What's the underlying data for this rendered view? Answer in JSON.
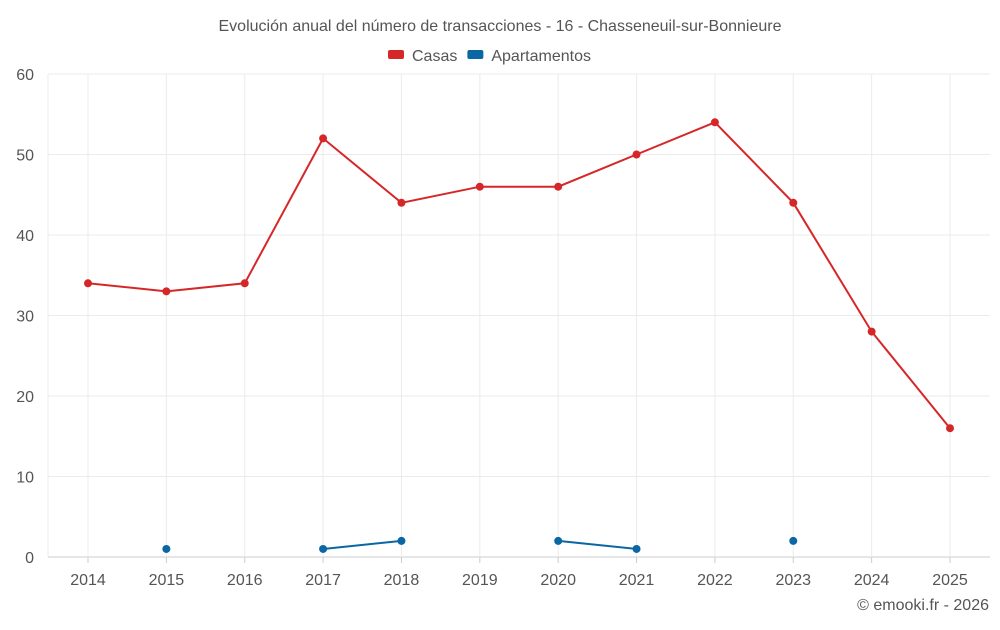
{
  "chart_data": {
    "type": "line",
    "title": "Evolución anual del número de transacciones - 16 - Chasseneuil-sur-Bonnieure",
    "categories": [
      "2014",
      "2015",
      "2016",
      "2017",
      "2018",
      "2019",
      "2020",
      "2021",
      "2022",
      "2023",
      "2024",
      "2025"
    ],
    "series": [
      {
        "name": "Casas",
        "color": "#d62728",
        "values": [
          34,
          33,
          34,
          52,
          44,
          46,
          46,
          50,
          54,
          44,
          28,
          16
        ]
      },
      {
        "name": "Apartamentos",
        "color": "#0a67a3",
        "values": [
          null,
          1,
          null,
          1,
          2,
          null,
          2,
          1,
          null,
          2,
          null,
          null
        ]
      }
    ],
    "ylim": [
      0,
      60
    ],
    "yticks": [
      0,
      10,
      20,
      30,
      40,
      50,
      60
    ],
    "grid": true,
    "legend": "top-center",
    "xlabel": "",
    "ylabel": ""
  },
  "credit": "© emooki.fr - 2026"
}
